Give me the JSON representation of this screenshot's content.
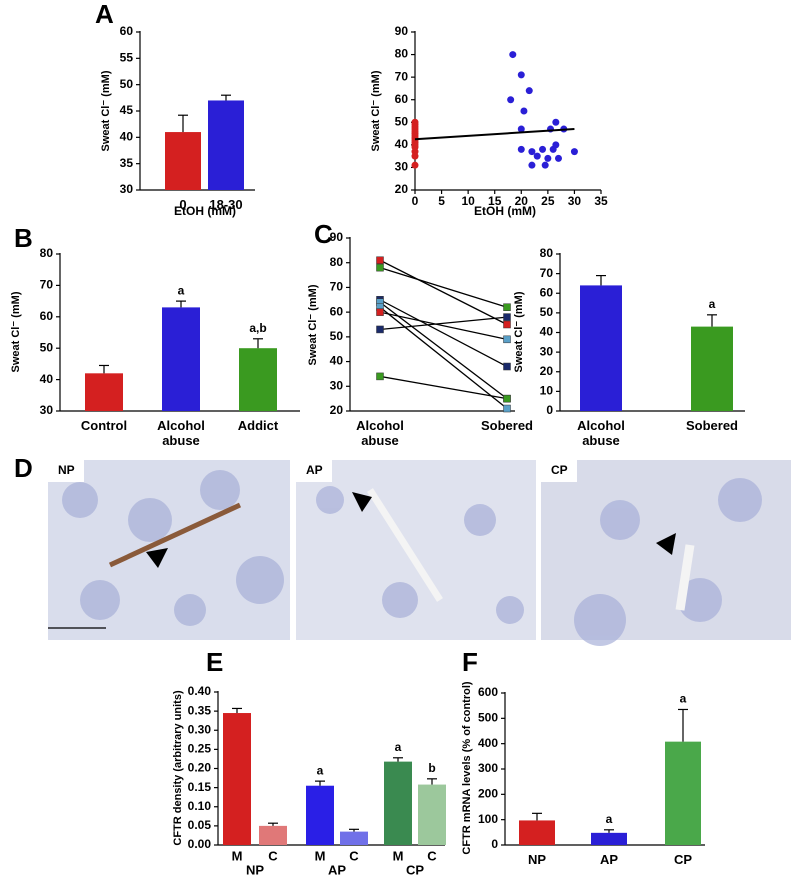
{
  "panel_labels": [
    "A",
    "B",
    "C",
    "D",
    "E",
    "F"
  ],
  "micrographs": [
    "NP",
    "AP",
    "CP"
  ],
  "chart_data": [
    {
      "type": "bar",
      "y_label": "Sweat Cl⁻ (mM)",
      "x_label": "EtOH (mM)",
      "categories": [
        "0",
        "18-30"
      ],
      "values": [
        41,
        47
      ],
      "errors": [
        3.2,
        1
      ],
      "colors": [
        "#d42020",
        "#2a1fd6"
      ],
      "ylim": [
        30,
        60
      ],
      "yticks": [
        30,
        35,
        40,
        45,
        50,
        55,
        60
      ]
    },
    {
      "type": "scatter",
      "y_label": "Sweat Cl⁻ (mM)",
      "x_label": "EtOH (mM)",
      "series": [
        {
          "color": "#d42020",
          "x": [
            0,
            0,
            0,
            0,
            0,
            0,
            0,
            0,
            0,
            0,
            0,
            0,
            0,
            0,
            0
          ],
          "y": [
            31,
            35,
            37,
            39,
            40,
            41,
            42,
            43,
            44,
            45,
            46,
            47,
            48,
            49,
            50
          ]
        },
        {
          "color": "#2a1fd6",
          "x": [
            18.4,
            20,
            21.5,
            18,
            20.5,
            20,
            26.5,
            25.5,
            28,
            20,
            22,
            23,
            24,
            25,
            26,
            22,
            24.5,
            27,
            30,
            26.5
          ],
          "y": [
            80,
            71,
            64,
            60,
            55,
            47,
            50,
            47,
            47,
            38,
            37,
            35,
            38,
            34,
            38,
            31,
            31,
            34,
            37,
            40
          ]
        }
      ],
      "trend": {
        "x": [
          0,
          30
        ],
        "y": [
          42.5,
          47
        ]
      },
      "xlim": [
        0,
        35
      ],
      "xticks": [
        0,
        5,
        10,
        15,
        20,
        25,
        30,
        35
      ],
      "ylim": [
        20,
        90
      ],
      "yticks": [
        20,
        30,
        40,
        50,
        60,
        70,
        80,
        90
      ]
    },
    {
      "type": "bar",
      "y_label": "Sweat Cl⁻ (mM)",
      "categories": [
        "Control",
        "Alcohol abuse",
        "Addict"
      ],
      "values": [
        42,
        63,
        50
      ],
      "errors": [
        2.5,
        2,
        3
      ],
      "letters": [
        null,
        "a",
        "a,b"
      ],
      "colors": [
        "#d42020",
        "#2a1fd6",
        "#3a9a20"
      ],
      "ylim": [
        30,
        80
      ],
      "yticks": [
        30,
        40,
        50,
        60,
        70,
        80
      ]
    },
    {
      "type": "paired",
      "y_label": "Sweat Cl⁻ (mM)",
      "categories": [
        "Alcohol abuse",
        "Sobered"
      ],
      "pairs": [
        {
          "values": [
            81,
            55
          ],
          "colors": [
            "#d42020",
            "#d42020"
          ]
        },
        {
          "values": [
            78,
            62
          ],
          "colors": [
            "#3a9a20",
            "#3a9a20"
          ]
        },
        {
          "values": [
            65,
            38
          ],
          "colors": [
            "#1a2a6a",
            "#1a2a6a"
          ]
        },
        {
          "values": [
            64,
            25
          ],
          "colors": [
            "#5aa0c8",
            "#5aa0c8"
          ]
        },
        {
          "values": [
            62,
            21
          ],
          "colors": [
            "#5aa0c8",
            "#5aa0c8"
          ]
        },
        {
          "values": [
            60,
            49
          ],
          "colors": [
            "#d42020",
            "#5aa0c8"
          ]
        },
        {
          "values": [
            53,
            58
          ],
          "colors": [
            "#1a2a6a",
            "#1a2a6a"
          ]
        },
        {
          "values": [
            34,
            25
          ],
          "colors": [
            "#3a9a20",
            "#3a9a20"
          ]
        }
      ],
      "ylim": [
        20,
        90
      ],
      "yticks": [
        20,
        30,
        40,
        50,
        60,
        70,
        80,
        90
      ]
    },
    {
      "type": "bar",
      "y_label": "Sweat Cl⁻ (mM)",
      "categories": [
        "Alcohol abuse",
        "Sobered"
      ],
      "values": [
        64,
        43
      ],
      "errors": [
        5,
        6
      ],
      "letters": [
        null,
        "a"
      ],
      "colors": [
        "#2a1fd6",
        "#3a9a20"
      ],
      "ylim": [
        0,
        80
      ],
      "yticks": [
        0,
        10,
        20,
        30,
        40,
        50,
        60,
        70,
        80
      ]
    },
    {
      "type": "bar",
      "y_label": "CFTR density (arbitrary units)",
      "categories": [
        "M",
        "C",
        "M",
        "C",
        "M",
        "C"
      ],
      "values": [
        0.345,
        0.05,
        0.155,
        0.035,
        0.218,
        0.158
      ],
      "errors": [
        0.012,
        0.007,
        0.012,
        0.006,
        0.01,
        0.015
      ],
      "letters": [
        null,
        null,
        "a",
        null,
        "a",
        "b"
      ],
      "colors": [
        "#d42020",
        "#e07878",
        "#2a1fe6",
        "#7070e8",
        "#3a8a50",
        "#9cc89c"
      ],
      "groups": [
        "NP",
        "AP",
        "CP"
      ],
      "group_colors": [
        "#d42020",
        "#2a1fd6",
        "#3a9a20"
      ],
      "ylim": [
        0,
        0.4
      ],
      "yticks": [
        {
          "value": 0,
          "label": "0.00"
        },
        {
          "value": 0.05,
          "label": "0.05"
        },
        {
          "value": 0.1,
          "label": "0.10"
        },
        {
          "value": 0.15,
          "label": "0.15"
        },
        {
          "value": 0.2,
          "label": "0.20"
        },
        {
          "value": 0.25,
          "label": "0.25"
        },
        {
          "value": 0.3,
          "label": "0.30"
        },
        {
          "value": 0.35,
          "label": "0.35"
        },
        {
          "value": 0.4,
          "label": "0.40"
        }
      ]
    },
    {
      "type": "bar",
      "y_label": "CFTR mRNA levels (% of control)",
      "categories": [
        "NP",
        "AP",
        "CP"
      ],
      "values": [
        97,
        48,
        408
      ],
      "errors": [
        28,
        12,
        127
      ],
      "letters": [
        null,
        "a",
        "a"
      ],
      "colors": [
        "#d42020",
        "#2a1fd6",
        "#4aa84a"
      ],
      "ylim": [
        0,
        600
      ],
      "yticks": [
        0,
        100,
        200,
        300,
        400,
        500,
        600
      ]
    }
  ]
}
